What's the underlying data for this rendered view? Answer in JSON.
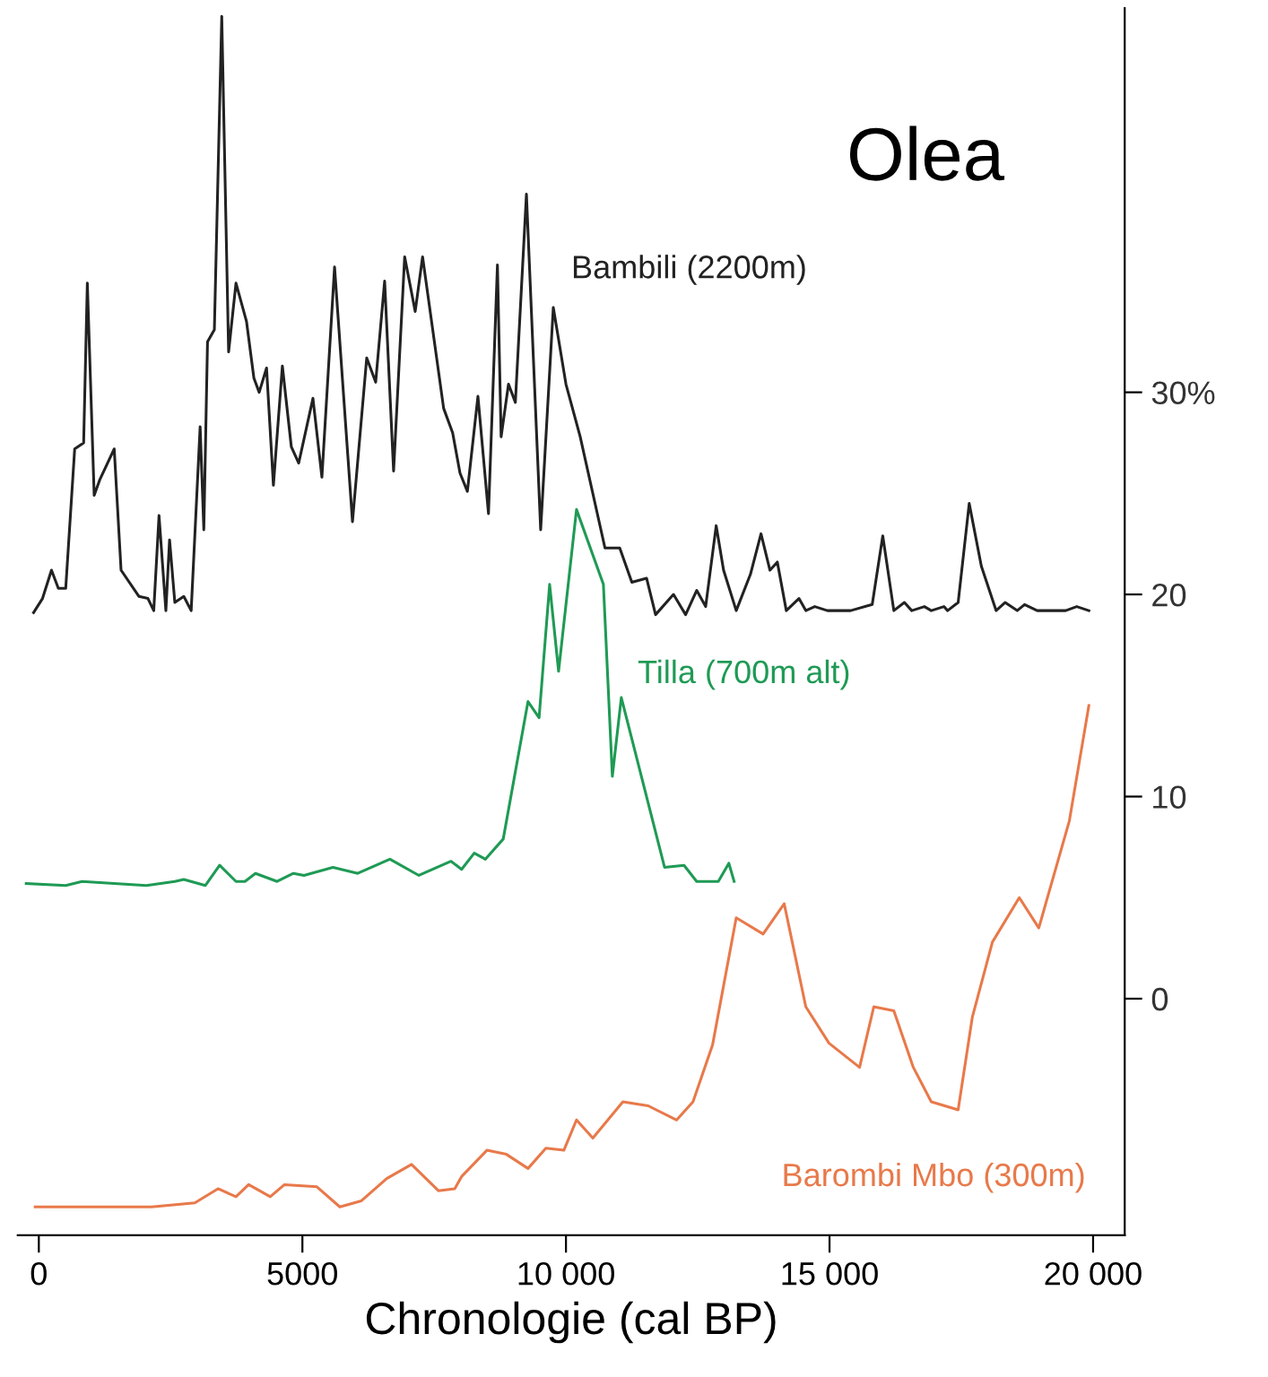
{
  "chart_data": {
    "type": "line",
    "title": "Olea",
    "xlabel": "Chronologie (cal BP)",
    "xlim": [
      -400,
      20600
    ],
    "ylim": [
      -11.7,
      49
    ],
    "xticks": [
      0,
      5000,
      {
        "value": 10000,
        "label": "10 000"
      },
      {
        "value": 15000,
        "label": "15 000"
      },
      {
        "value": 20000,
        "label": "20 000"
      }
    ],
    "yticks": [
      0,
      10,
      20,
      {
        "value": 30,
        "label": "30%"
      }
    ],
    "grid": false,
    "legend": false,
    "marker": "none",
    "line_style": "solid",
    "series": [
      {
        "name": "Bambili (2200m)",
        "color": "#222222",
        "x": [
          -100,
          70,
          240,
          370,
          510,
          680,
          850,
          920,
          1050,
          1160,
          1430,
          1560,
          1900,
          2070,
          2180,
          2280,
          2410,
          2480,
          2580,
          2750,
          2890,
          3060,
          3130,
          3200,
          3330,
          3470,
          3600,
          3740,
          3940,
          4080,
          4180,
          4320,
          4450,
          4620,
          4790,
          4930,
          5200,
          5370,
          5610,
          5950,
          6220,
          6390,
          6560,
          6730,
          6940,
          7140,
          7280,
          7680,
          7850,
          7990,
          8130,
          8330,
          8530,
          8700,
          8770,
          8910,
          9040,
          9250,
          9520,
          9760,
          10000,
          10270,
          10740,
          11020,
          11250,
          11530,
          11700,
          12040,
          12270,
          12480,
          12650,
          12850,
          12990,
          13230,
          13500,
          13700,
          13870,
          14010,
          14180,
          14420,
          14550,
          14720,
          14960,
          15400,
          15810,
          16010,
          16220,
          16420,
          16560,
          16800,
          16930,
          17170,
          17240,
          17440,
          17650,
          17880,
          18160,
          18330,
          18560,
          18700,
          18940,
          19480,
          19690,
          19920
        ],
        "values": [
          19.1,
          19.8,
          21.2,
          20.3,
          20.3,
          27.2,
          27.5,
          35.4,
          24.9,
          25.7,
          27.2,
          21.2,
          19.9,
          19.8,
          19.2,
          23.9,
          19.2,
          22.7,
          19.6,
          19.9,
          19.2,
          28.3,
          23.2,
          32.5,
          33.1,
          48.6,
          32.0,
          35.4,
          33.5,
          30.7,
          30.0,
          31.2,
          25.4,
          31.3,
          27.3,
          26.5,
          29.7,
          25.8,
          36.2,
          23.6,
          31.7,
          30.5,
          35.5,
          26.1,
          36.7,
          34.0,
          36.7,
          29.2,
          28.0,
          26.0,
          25.1,
          29.8,
          24.0,
          36.3,
          27.8,
          30.4,
          29.5,
          39.8,
          23.2,
          34.2,
          30.4,
          27.8,
          22.3,
          22.3,
          20.6,
          20.8,
          19.0,
          20.0,
          19.0,
          20.2,
          19.4,
          23.4,
          21.2,
          19.2,
          21.0,
          23.0,
          21.2,
          21.6,
          19.2,
          19.8,
          19.2,
          19.4,
          19.2,
          19.2,
          19.5,
          22.9,
          19.2,
          19.6,
          19.2,
          19.4,
          19.2,
          19.4,
          19.2,
          19.6,
          24.5,
          21.4,
          19.2,
          19.6,
          19.2,
          19.5,
          19.2,
          19.2,
          19.4,
          19.2
        ]
      },
      {
        "name": "Tilla (700m alt)",
        "color": "#1f9a55",
        "x": [
          -240,
          510,
          820,
          2040,
          2580,
          2750,
          3160,
          3430,
          3740,
          3910,
          4110,
          4520,
          4830,
          5030,
          5580,
          6050,
          6660,
          7210,
          7820,
          8020,
          8260,
          8470,
          8810,
          9280,
          9490,
          9690,
          9860,
          10200,
          10710,
          10880,
          11050,
          11870,
          12240,
          12480,
          12890,
          13090,
          13190
        ],
        "values": [
          5.7,
          5.6,
          5.8,
          5.6,
          5.8,
          5.9,
          5.6,
          6.6,
          5.8,
          5.8,
          6.2,
          5.8,
          6.2,
          6.1,
          6.5,
          6.2,
          6.9,
          6.1,
          6.8,
          6.4,
          7.2,
          6.9,
          7.9,
          14.7,
          13.9,
          20.5,
          16.2,
          24.2,
          20.5,
          11.0,
          14.9,
          6.5,
          6.6,
          5.8,
          5.8,
          6.7,
          5.8
        ]
      },
      {
        "name": "Barombi Mbo (300m)",
        "color": "#e8794a",
        "x": [
          -70,
          2140,
          2960,
          3400,
          3740,
          3980,
          4390,
          4660,
          5270,
          5710,
          6120,
          6600,
          7070,
          7580,
          7890,
          8020,
          8500,
          8870,
          9280,
          9620,
          9960,
          10200,
          10510,
          11080,
          11560,
          12100,
          12410,
          12780,
          13230,
          13740,
          14140,
          14550,
          14990,
          15570,
          15840,
          16220,
          16590,
          16930,
          17440,
          17710,
          18090,
          18600,
          18970,
          19550,
          19920
        ],
        "values": [
          -10.3,
          -10.3,
          -10.1,
          -9.4,
          -9.8,
          -9.2,
          -9.8,
          -9.2,
          -9.3,
          -10.3,
          -10.0,
          -8.9,
          -8.2,
          -9.5,
          -9.4,
          -8.8,
          -7.5,
          -7.7,
          -8.4,
          -7.4,
          -7.5,
          -6.0,
          -6.9,
          -5.1,
          -5.3,
          -6.0,
          -5.1,
          -2.3,
          4.0,
          3.2,
          4.7,
          -0.4,
          -2.2,
          -3.4,
          -0.4,
          -0.6,
          -3.4,
          -5.1,
          -5.5,
          -0.9,
          2.8,
          5.0,
          3.5,
          8.8,
          14.5
        ]
      }
    ]
  }
}
